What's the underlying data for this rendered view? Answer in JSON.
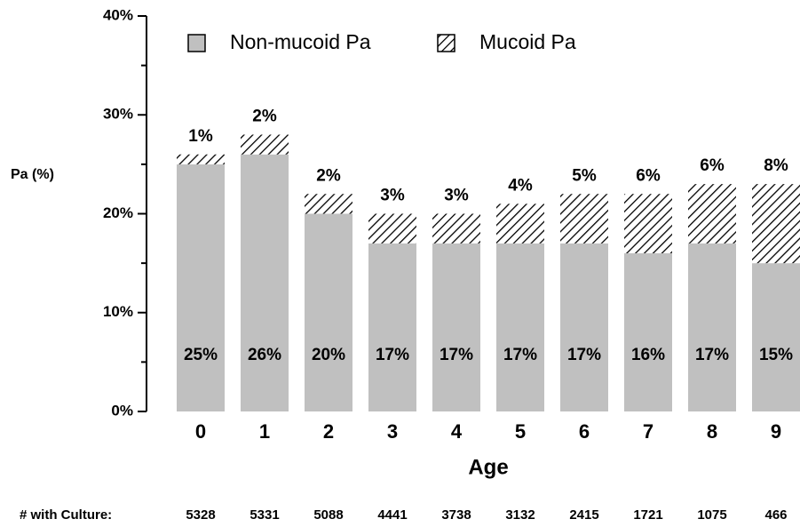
{
  "chart_data": {
    "type": "bar",
    "stacked": true,
    "y_label": "Pa (%)",
    "x_label": "Age",
    "categories": [
      "0",
      "1",
      "2",
      "3",
      "4",
      "5",
      "6",
      "7",
      "8",
      "9"
    ],
    "series": [
      {
        "name": "Non-mucoid Pa",
        "color": "#c0c0c0",
        "hatch": false,
        "values": [
          25,
          26,
          20,
          17,
          17,
          17,
          17,
          16,
          17,
          15
        ],
        "value_labels": [
          "25%",
          "26%",
          "20%",
          "17%",
          "17%",
          "17%",
          "17%",
          "16%",
          "17%",
          "15%"
        ]
      },
      {
        "name": "Mucoid Pa",
        "color": "#000000",
        "hatch": true,
        "values": [
          1,
          2,
          2,
          3,
          3,
          4,
          5,
          6,
          6,
          8
        ],
        "value_labels": [
          "1%",
          "2%",
          "2%",
          "3%",
          "3%",
          "4%",
          "5%",
          "6%",
          "6%",
          "8%"
        ]
      }
    ],
    "ylim": [
      0,
      40
    ],
    "yticks": [
      {
        "value": 0,
        "label": "0%"
      },
      {
        "value": 10,
        "label": "10%"
      },
      {
        "value": 20,
        "label": "20%"
      },
      {
        "value": 30,
        "label": "30%"
      },
      {
        "value": 40,
        "label": "40%"
      }
    ],
    "yminorticks": [
      5,
      15,
      25,
      35
    ],
    "grid": false,
    "legend": "top",
    "culture": {
      "label": "# with Culture:",
      "values": [
        5328,
        5331,
        5088,
        4441,
        3738,
        3132,
        2415,
        1721,
        1075,
        466
      ]
    }
  }
}
